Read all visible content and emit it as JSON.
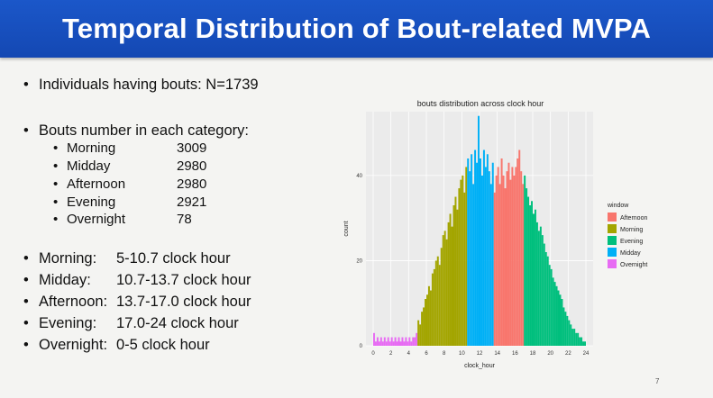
{
  "title": "Temporal Distribution of Bout-related MVPA",
  "individuals": "Individuals having bouts: N=1739",
  "bouts_header": "Bouts number in each category:",
  "categories": [
    {
      "name": "Morning",
      "count": "3009"
    },
    {
      "name": "Midday",
      "count": "2980"
    },
    {
      "name": "Afternoon",
      "count": "2980"
    },
    {
      "name": "Evening",
      "count": "2921"
    },
    {
      "name": "Overnight",
      "count": "78"
    }
  ],
  "windows": [
    {
      "name": "Morning:",
      "range": "5-10.7 clock hour"
    },
    {
      "name": "Midday:",
      "range": "10.7-13.7 clock hour"
    },
    {
      "name": "Afternoon:",
      "range": "13.7-17.0 clock hour"
    },
    {
      "name": "Evening:",
      "range": "17.0-24 clock hour"
    },
    {
      "name": "Overnight:",
      "range": "0-5 clock hour"
    }
  ],
  "page_number": "7",
  "chart_data": {
    "type": "bar",
    "title": "bouts distribution across clock hour",
    "xlabel": "clock_hour",
    "ylabel": "count",
    "xlim": [
      0,
      24
    ],
    "ylim": [
      0,
      55
    ],
    "x_ticks": [
      "0",
      "2",
      "4",
      "6",
      "8",
      "10",
      "12",
      "14",
      "16",
      "18",
      "20",
      "22",
      "24"
    ],
    "y_ticks": [
      "0",
      "20",
      "40"
    ],
    "legend_title": "window",
    "legend_position": "right",
    "series": [
      {
        "name": "Afternoon",
        "color": "#F8766D",
        "hour_range": [
          13.7,
          17.0
        ]
      },
      {
        "name": "Morning",
        "color": "#A3A500",
        "hour_range": [
          5.0,
          10.7
        ]
      },
      {
        "name": "Evening",
        "color": "#00BF7D",
        "hour_range": [
          17.0,
          24.0
        ]
      },
      {
        "name": "Midday",
        "color": "#00B0F6",
        "hour_range": [
          10.7,
          13.7
        ]
      },
      {
        "name": "Overnight",
        "color": "#E76BF3",
        "hour_range": [
          0.0,
          5.0
        ]
      }
    ],
    "profile_hours": [
      0,
      1,
      2,
      3,
      4,
      5,
      6,
      7,
      8,
      9,
      10,
      11,
      12,
      13,
      14,
      15,
      16,
      17,
      18,
      19,
      20,
      21,
      22,
      23,
      24
    ],
    "profile_counts": [
      2.5,
      2,
      2,
      2,
      2.5,
      5,
      12,
      20,
      27,
      33,
      40,
      44,
      46,
      43,
      40,
      42,
      44,
      38,
      32,
      26,
      18,
      12,
      6,
      3,
      0
    ],
    "bars": [
      {
        "x": 0.0,
        "y": 3
      },
      {
        "x": 0.2,
        "y": 1
      },
      {
        "x": 0.4,
        "y": 2
      },
      {
        "x": 0.6,
        "y": 1
      },
      {
        "x": 0.8,
        "y": 2
      },
      {
        "x": 1.0,
        "y": 1
      },
      {
        "x": 1.2,
        "y": 2
      },
      {
        "x": 1.4,
        "y": 1
      },
      {
        "x": 1.6,
        "y": 2
      },
      {
        "x": 1.8,
        "y": 1
      },
      {
        "x": 2.0,
        "y": 2
      },
      {
        "x": 2.2,
        "y": 1
      },
      {
        "x": 2.4,
        "y": 2
      },
      {
        "x": 2.6,
        "y": 1
      },
      {
        "x": 2.8,
        "y": 2
      },
      {
        "x": 3.0,
        "y": 1
      },
      {
        "x": 3.2,
        "y": 2
      },
      {
        "x": 3.4,
        "y": 1
      },
      {
        "x": 3.6,
        "y": 2
      },
      {
        "x": 3.8,
        "y": 1
      },
      {
        "x": 4.0,
        "y": 2
      },
      {
        "x": 4.2,
        "y": 1
      },
      {
        "x": 4.4,
        "y": 2
      },
      {
        "x": 4.6,
        "y": 2
      },
      {
        "x": 4.8,
        "y": 3
      },
      {
        "x": 5.0,
        "y": 6
      },
      {
        "x": 5.2,
        "y": 5
      },
      {
        "x": 5.4,
        "y": 8
      },
      {
        "x": 5.6,
        "y": 9
      },
      {
        "x": 5.8,
        "y": 11
      },
      {
        "x": 6.0,
        "y": 12
      },
      {
        "x": 6.2,
        "y": 14
      },
      {
        "x": 6.4,
        "y": 13
      },
      {
        "x": 6.6,
        "y": 17
      },
      {
        "x": 6.8,
        "y": 18
      },
      {
        "x": 7.0,
        "y": 20
      },
      {
        "x": 7.2,
        "y": 21
      },
      {
        "x": 7.4,
        "y": 19
      },
      {
        "x": 7.6,
        "y": 23
      },
      {
        "x": 7.8,
        "y": 26
      },
      {
        "x": 8.0,
        "y": 27
      },
      {
        "x": 8.2,
        "y": 25
      },
      {
        "x": 8.4,
        "y": 29
      },
      {
        "x": 8.6,
        "y": 31
      },
      {
        "x": 8.8,
        "y": 28
      },
      {
        "x": 9.0,
        "y": 33
      },
      {
        "x": 9.2,
        "y": 35
      },
      {
        "x": 9.4,
        "y": 32
      },
      {
        "x": 9.6,
        "y": 37
      },
      {
        "x": 9.8,
        "y": 39
      },
      {
        "x": 10.0,
        "y": 40
      },
      {
        "x": 10.2,
        "y": 36
      },
      {
        "x": 10.4,
        "y": 42
      },
      {
        "x": 10.6,
        "y": 44
      },
      {
        "x": 10.8,
        "y": 41
      },
      {
        "x": 11.0,
        "y": 45
      },
      {
        "x": 11.2,
        "y": 38
      },
      {
        "x": 11.4,
        "y": 46
      },
      {
        "x": 11.6,
        "y": 43
      },
      {
        "x": 11.8,
        "y": 54
      },
      {
        "x": 12.0,
        "y": 44
      },
      {
        "x": 12.2,
        "y": 40
      },
      {
        "x": 12.4,
        "y": 46
      },
      {
        "x": 12.6,
        "y": 42
      },
      {
        "x": 12.8,
        "y": 45
      },
      {
        "x": 13.0,
        "y": 41
      },
      {
        "x": 13.2,
        "y": 38
      },
      {
        "x": 13.4,
        "y": 43
      },
      {
        "x": 13.6,
        "y": 36
      },
      {
        "x": 13.8,
        "y": 40
      },
      {
        "x": 14.0,
        "y": 42
      },
      {
        "x": 14.2,
        "y": 38
      },
      {
        "x": 14.4,
        "y": 44
      },
      {
        "x": 14.6,
        "y": 40
      },
      {
        "x": 14.8,
        "y": 37
      },
      {
        "x": 15.0,
        "y": 41
      },
      {
        "x": 15.2,
        "y": 43
      },
      {
        "x": 15.4,
        "y": 39
      },
      {
        "x": 15.6,
        "y": 42
      },
      {
        "x": 15.8,
        "y": 40
      },
      {
        "x": 16.0,
        "y": 42
      },
      {
        "x": 16.2,
        "y": 44
      },
      {
        "x": 16.4,
        "y": 46
      },
      {
        "x": 16.6,
        "y": 41
      },
      {
        "x": 16.8,
        "y": 38
      },
      {
        "x": 17.0,
        "y": 40
      },
      {
        "x": 17.2,
        "y": 37
      },
      {
        "x": 17.4,
        "y": 35
      },
      {
        "x": 17.6,
        "y": 33
      },
      {
        "x": 17.8,
        "y": 34
      },
      {
        "x": 18.0,
        "y": 31
      },
      {
        "x": 18.2,
        "y": 32
      },
      {
        "x": 18.4,
        "y": 29
      },
      {
        "x": 18.6,
        "y": 27
      },
      {
        "x": 18.8,
        "y": 28
      },
      {
        "x": 19.0,
        "y": 26
      },
      {
        "x": 19.2,
        "y": 24
      },
      {
        "x": 19.4,
        "y": 22
      },
      {
        "x": 19.6,
        "y": 21
      },
      {
        "x": 19.8,
        "y": 19
      },
      {
        "x": 20.0,
        "y": 18
      },
      {
        "x": 20.2,
        "y": 16
      },
      {
        "x": 20.4,
        "y": 15
      },
      {
        "x": 20.6,
        "y": 14
      },
      {
        "x": 20.8,
        "y": 13
      },
      {
        "x": 21.0,
        "y": 12
      },
      {
        "x": 21.2,
        "y": 11
      },
      {
        "x": 21.4,
        "y": 9
      },
      {
        "x": 21.6,
        "y": 8
      },
      {
        "x": 21.8,
        "y": 7
      },
      {
        "x": 22.0,
        "y": 6
      },
      {
        "x": 22.2,
        "y": 5
      },
      {
        "x": 22.4,
        "y": 4
      },
      {
        "x": 22.6,
        "y": 4
      },
      {
        "x": 22.8,
        "y": 3
      },
      {
        "x": 23.0,
        "y": 3
      },
      {
        "x": 23.2,
        "y": 2
      },
      {
        "x": 23.4,
        "y": 2
      },
      {
        "x": 23.6,
        "y": 1
      },
      {
        "x": 23.8,
        "y": 1
      }
    ]
  }
}
